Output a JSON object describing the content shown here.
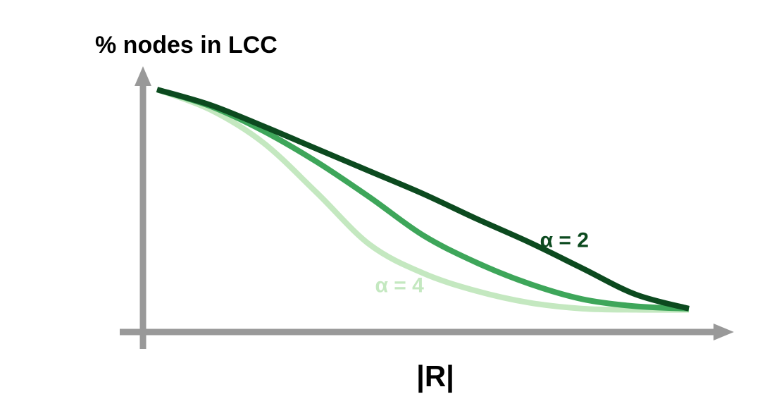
{
  "chart_data": {
    "type": "line",
    "title": "",
    "ylabel": "% nodes in LCC",
    "xlabel": "|R|",
    "xlim": [
      0,
      1
    ],
    "ylim": [
      0,
      1
    ],
    "grid": false,
    "legend": "none",
    "axis_color": "#999999",
    "series": [
      {
        "name": "α = 2",
        "color": "#0c4a1f",
        "label_color": "#0c4a1f",
        "x": [
          0.0,
          0.1,
          0.2,
          0.3,
          0.4,
          0.5,
          0.6,
          0.7,
          0.8,
          0.9,
          1.0
        ],
        "values": [
          0.985,
          0.92,
          0.83,
          0.735,
          0.64,
          0.545,
          0.44,
          0.34,
          0.23,
          0.12,
          0.06
        ]
      },
      {
        "name": "",
        "color": "#3ea65a",
        "x": [
          0.0,
          0.1,
          0.2,
          0.3,
          0.4,
          0.5,
          0.6,
          0.7,
          0.8,
          0.9,
          1.0
        ],
        "values": [
          0.985,
          0.915,
          0.81,
          0.68,
          0.53,
          0.37,
          0.255,
          0.165,
          0.1,
          0.07,
          0.06
        ]
      },
      {
        "name": "α = 4",
        "color": "#c4e8c0",
        "label_color": "#c4e8c0",
        "x": [
          0.0,
          0.1,
          0.2,
          0.3,
          0.4,
          0.5,
          0.6,
          0.7,
          0.8,
          0.9,
          1.0
        ],
        "values": [
          0.985,
          0.9,
          0.76,
          0.55,
          0.33,
          0.21,
          0.135,
          0.085,
          0.06,
          0.055,
          0.055
        ]
      }
    ],
    "annotations": [
      {
        "text": "α = 2",
        "x": 0.72,
        "y": 0.32,
        "color": "#0c4a1f"
      },
      {
        "text": "α = 4",
        "x": 0.41,
        "y": 0.13,
        "color": "#c4e8c0"
      }
    ]
  }
}
